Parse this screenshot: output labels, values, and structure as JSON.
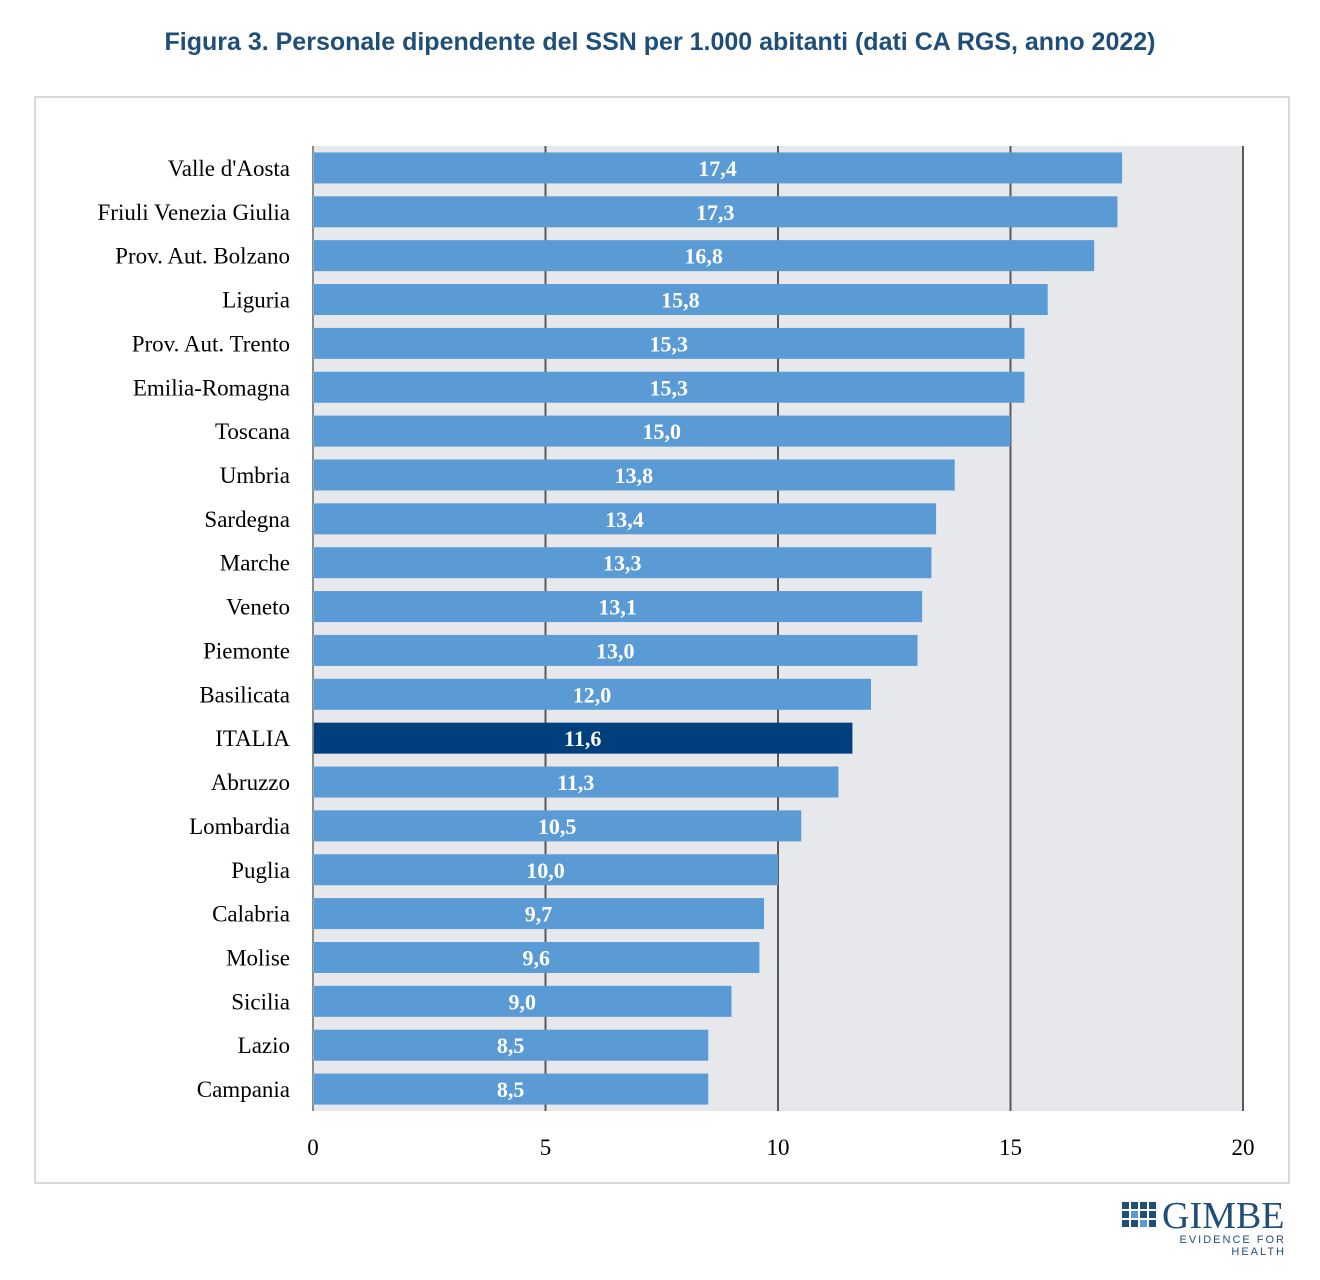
{
  "title": "Figura 3. Personale dipendente del SSN per 1.000 abitanti (dati CA RGS, anno 2022)",
  "colors": {
    "bar": "#5B9BD5",
    "highlight": "#003F7D",
    "plot_bg": "#E7E8EC",
    "gridline": "#595959",
    "title": "#1F4E79"
  },
  "chart_data": {
    "type": "bar",
    "orientation": "horizontal",
    "categories": [
      "Valle d'Aosta",
      "Friuli Venezia Giulia",
      "Prov. Aut. Bolzano",
      "Liguria",
      "Prov. Aut. Trento",
      "Emilia-Romagna",
      "Toscana",
      "Umbria",
      "Sardegna",
      "Marche",
      "Veneto",
      "Piemonte",
      "Basilicata",
      "ITALIA",
      "Abruzzo",
      "Lombardia",
      "Puglia",
      "Calabria",
      "Molise",
      "Sicilia",
      "Lazio",
      "Campania"
    ],
    "values": [
      17.4,
      17.3,
      16.8,
      15.8,
      15.3,
      15.3,
      15.0,
      13.8,
      13.4,
      13.3,
      13.1,
      13.0,
      12.0,
      11.6,
      11.3,
      10.5,
      10.0,
      9.7,
      9.6,
      9.0,
      8.5,
      8.5
    ],
    "value_labels": [
      "17,4",
      "17,3",
      "16,8",
      "15,8",
      "15,3",
      "15,3",
      "15,0",
      "13,8",
      "13,4",
      "13,3",
      "13,1",
      "13,0",
      "12,0",
      "11,6",
      "11,3",
      "10,5",
      "10,0",
      "9,7",
      "9,6",
      "9,0",
      "8,5",
      "8,5"
    ],
    "highlight_category": "ITALIA",
    "xlim": [
      0,
      20
    ],
    "xticks": [
      "0",
      "5",
      "10",
      "15",
      "20"
    ],
    "grid": true,
    "legend": "none"
  },
  "logo": {
    "name": "GIMBE",
    "tagline": "EVIDENCE FOR HEALTH",
    "icon": "gimbe-grid-logo-icon"
  }
}
